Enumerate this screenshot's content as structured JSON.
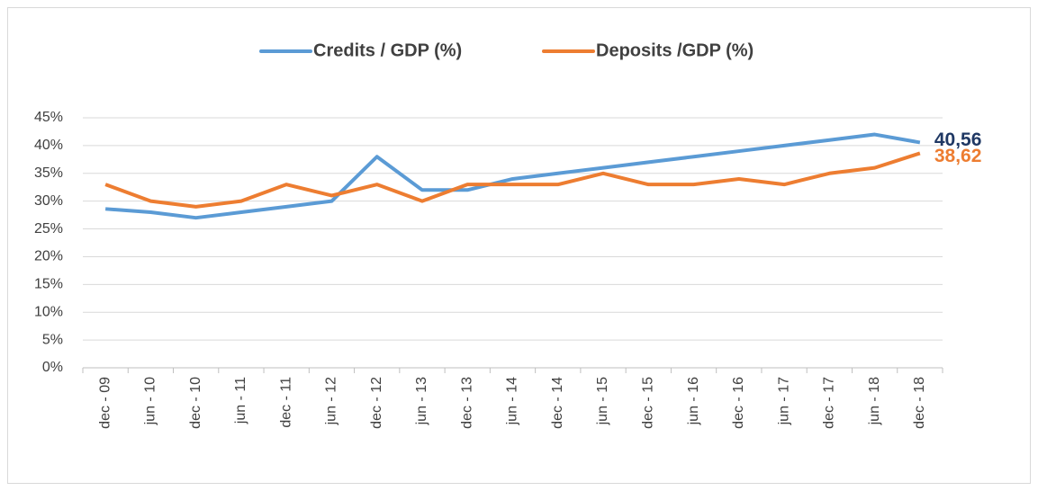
{
  "chart_data": {
    "type": "line",
    "categories": [
      "dec - 09",
      "jun - 10",
      "dec - 10",
      "jun - 11",
      "dec - 11",
      "jun - 12",
      "dec - 12",
      "jun - 13",
      "dec - 13",
      "jun - 14",
      "dec - 14",
      "jun - 15",
      "dec - 15",
      "jun - 16",
      "dec - 16",
      "jun - 17",
      "dec - 17",
      "jun - 18",
      "dec - 18"
    ],
    "series": [
      {
        "name": "Credits / GDP (%)",
        "color": "#5b9bd5",
        "label_color": "#1f3864",
        "values": [
          28.6,
          28,
          27,
          28,
          29,
          30,
          38,
          32,
          32,
          34,
          35,
          36,
          37,
          38,
          39,
          40,
          41,
          42,
          40.56
        ],
        "value_labels": [
          null,
          null,
          null,
          null,
          null,
          null,
          null,
          null,
          null,
          null,
          null,
          null,
          null,
          null,
          null,
          null,
          null,
          null,
          "40,56"
        ]
      },
      {
        "name": "Deposits /GDP (%)",
        "color": "#ed7d31",
        "label_color": "#ed7d31",
        "values": [
          33,
          30,
          29,
          30,
          33,
          31,
          33,
          30,
          33,
          33,
          33,
          35,
          33,
          33,
          34,
          33,
          35,
          36,
          38.62
        ],
        "value_labels": [
          null,
          null,
          null,
          null,
          null,
          null,
          null,
          null,
          null,
          null,
          null,
          null,
          null,
          null,
          null,
          null,
          null,
          null,
          "38,62"
        ]
      }
    ],
    "ylim": [
      0,
      45
    ],
    "yticks": [
      {
        "value": 0,
        "label": "0%"
      },
      {
        "value": 5,
        "label": "5%"
      },
      {
        "value": 10,
        "label": "10%"
      },
      {
        "value": 15,
        "label": "15%"
      },
      {
        "value": 20,
        "label": "20%"
      },
      {
        "value": 25,
        "label": "25%"
      },
      {
        "value": 30,
        "label": "30%"
      },
      {
        "value": 35,
        "label": "35%"
      },
      {
        "value": 40,
        "label": "40%"
      },
      {
        "value": 45,
        "label": "45%"
      }
    ],
    "grid": true,
    "legend": "top"
  }
}
